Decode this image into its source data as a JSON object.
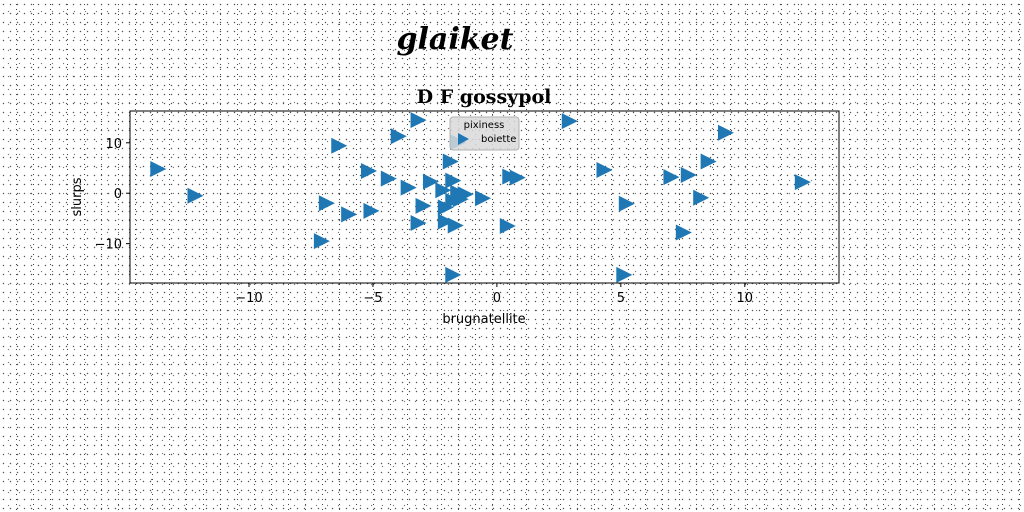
{
  "figure": {
    "suptitle": "glaiket"
  },
  "chart_data": {
    "type": "scatter",
    "title": "D F gossypol",
    "xlabel": "brugnatellite",
    "ylabel": "slurps",
    "xlim": [
      -14.8,
      13.8
    ],
    "ylim": [
      -17.8,
      16.3
    ],
    "xticks": [
      -10,
      -5,
      0,
      5,
      10
    ],
    "xtick_labels": [
      "−10",
      "−5",
      "0",
      "5",
      "10"
    ],
    "yticks": [
      -10,
      0,
      10
    ],
    "ytick_labels": [
      "−10",
      "0",
      "10"
    ],
    "grid": false,
    "legend": {
      "title": "pixiness",
      "placement": "top-center",
      "entries": [
        "boiette"
      ]
    },
    "marker": "triangle-right",
    "color": "#1f77b4",
    "series": [
      {
        "name": "boiette",
        "x": [
          -13.7,
          -12.2,
          -7.1,
          -6.9,
          -6.4,
          -6.0,
          -5.2,
          -5.1,
          -4.4,
          -4.0,
          -3.6,
          -3.2,
          -3.2,
          -3.0,
          -2.7,
          -2.2,
          -2.1,
          -2.1,
          -1.9,
          -1.8,
          -1.8,
          -1.8,
          -1.7,
          -1.6,
          -1.6,
          -1.5,
          -1.3,
          -0.6,
          0.4,
          0.5,
          0.8,
          2.9,
          4.3,
          5.1,
          5.2,
          7.0,
          7.5,
          7.7,
          8.2,
          8.5,
          9.2,
          12.3
        ],
        "y": [
          4.8,
          -0.5,
          -9.5,
          -2.0,
          9.4,
          -4.2,
          4.4,
          -3.5,
          2.9,
          11.3,
          1.1,
          14.5,
          -5.9,
          -2.5,
          2.3,
          0.6,
          -5.6,
          -2.8,
          6.3,
          -1.5,
          -16.2,
          2.5,
          -6.4,
          0.1,
          10.1,
          -1.2,
          -0.2,
          -1.0,
          -6.5,
          3.3,
          3.1,
          14.3,
          4.6,
          -16.2,
          -2.1,
          3.2,
          -7.8,
          3.6,
          -0.9,
          6.3,
          12.0,
          2.2
        ]
      }
    ]
  }
}
